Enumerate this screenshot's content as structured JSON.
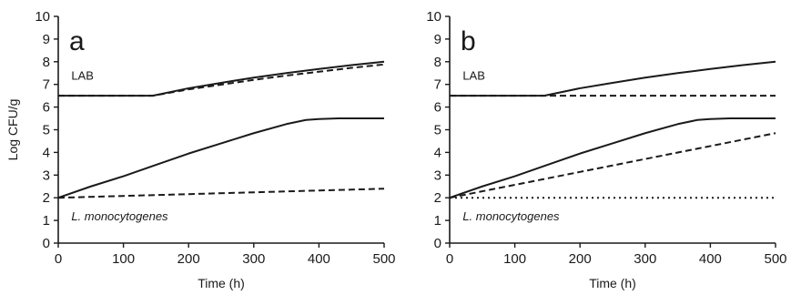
{
  "chart_data": [
    {
      "type": "line",
      "panel_label": "a",
      "xlabel": "Time (h)",
      "ylabel": "Log CFU/g",
      "xlim": [
        0,
        500
      ],
      "ylim": [
        0,
        10
      ],
      "xticks": [
        0,
        100,
        200,
        300,
        400,
        500
      ],
      "yticks": [
        0,
        1,
        2,
        3,
        4,
        5,
        6,
        7,
        8,
        9,
        10
      ],
      "grid": false,
      "annotations": [
        {
          "text": "LAB",
          "italic": false,
          "at": [
            20,
            7.4
          ]
        },
        {
          "text": "L. monocytogenes",
          "italic": true,
          "at": [
            20,
            1.2
          ]
        }
      ],
      "series": [
        {
          "style": "solid",
          "x": [
            0,
            145,
            200,
            250,
            300,
            350,
            400,
            450,
            500
          ],
          "y": [
            6.5,
            6.5,
            6.83,
            7.07,
            7.3,
            7.5,
            7.68,
            7.85,
            8.0
          ]
        },
        {
          "style": "dashed",
          "x": [
            0,
            145,
            200,
            250,
            300,
            350,
            400,
            450,
            500
          ],
          "y": [
            6.5,
            6.5,
            6.78,
            6.99,
            7.2,
            7.39,
            7.56,
            7.73,
            7.88
          ]
        },
        {
          "style": "solid",
          "x": [
            0,
            50,
            100,
            150,
            200,
            250,
            300,
            350,
            380,
            400,
            430,
            500
          ],
          "y": [
            2.0,
            2.5,
            2.95,
            3.45,
            3.95,
            4.4,
            4.85,
            5.25,
            5.43,
            5.47,
            5.5,
            5.5
          ]
        },
        {
          "style": "dashed",
          "x": [
            0,
            100,
            200,
            300,
            400,
            500
          ],
          "y": [
            2.0,
            2.08,
            2.16,
            2.24,
            2.32,
            2.4
          ]
        }
      ]
    },
    {
      "type": "line",
      "panel_label": "b",
      "xlabel": "Time (h)",
      "ylabel": "",
      "xlim": [
        0,
        500
      ],
      "ylim": [
        0,
        10
      ],
      "xticks": [
        0,
        100,
        200,
        300,
        400,
        500
      ],
      "yticks": [
        0,
        1,
        2,
        3,
        4,
        5,
        6,
        7,
        8,
        9,
        10
      ],
      "grid": false,
      "annotations": [
        {
          "text": "LAB",
          "italic": false,
          "at": [
            20,
            7.4
          ]
        },
        {
          "text": "L. monocytogenes",
          "italic": true,
          "at": [
            20,
            1.2
          ]
        }
      ],
      "series": [
        {
          "style": "solid",
          "x": [
            0,
            145,
            200,
            250,
            300,
            350,
            400,
            450,
            500
          ],
          "y": [
            6.5,
            6.5,
            6.83,
            7.07,
            7.3,
            7.5,
            7.68,
            7.85,
            8.0
          ]
        },
        {
          "style": "dashed",
          "x": [
            0,
            500
          ],
          "y": [
            6.5,
            6.5
          ]
        },
        {
          "style": "solid",
          "x": [
            0,
            50,
            100,
            150,
            200,
            250,
            300,
            350,
            380,
            400,
            430,
            500
          ],
          "y": [
            2.0,
            2.5,
            2.95,
            3.45,
            3.95,
            4.4,
            4.85,
            5.25,
            5.43,
            5.47,
            5.5,
            5.5
          ]
        },
        {
          "style": "dashed",
          "x": [
            0,
            100,
            200,
            300,
            400,
            500
          ],
          "y": [
            2.0,
            2.57,
            3.14,
            3.71,
            4.28,
            4.85
          ]
        },
        {
          "style": "dotted",
          "x": [
            0,
            500
          ],
          "y": [
            2.0,
            2.0
          ]
        }
      ]
    }
  ]
}
